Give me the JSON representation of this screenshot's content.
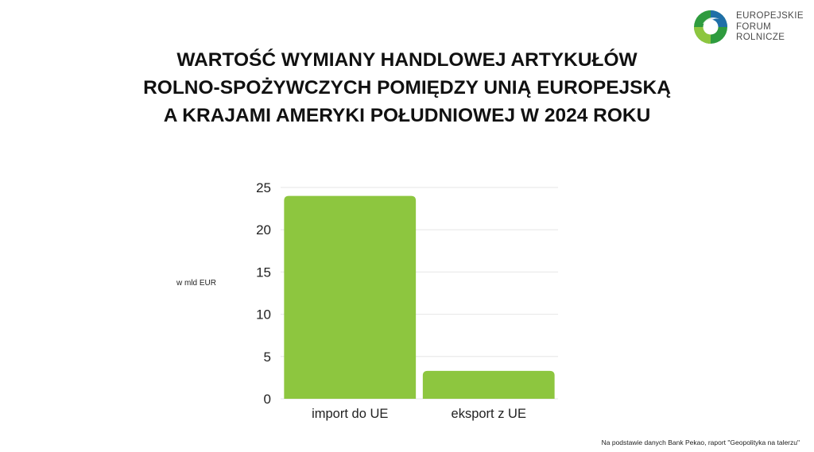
{
  "logo": {
    "icon": "efr-circle-logo-icon",
    "lines": [
      "EUROPEJSKIE",
      "FORUM",
      "ROLNICZE"
    ],
    "colors": {
      "green_dark": "#2e9b3e",
      "green_light": "#8dc63f",
      "blue": "#1f6fa8"
    }
  },
  "title": {
    "lines": [
      "WARTOŚĆ WYMIANY HANDLOWEJ ARTYKUŁÓW",
      "ROLNO-SPOŻYWCZYCH POMIĘDZY UNIĄ EUROPEJSKĄ",
      "A KRAJAMI AMERYKI POŁUDNIOWEJ W 2024 ROKU"
    ]
  },
  "chart_data": {
    "type": "bar",
    "categories": [
      "import do UE",
      "eksport z UE"
    ],
    "values": [
      24,
      3.3
    ],
    "ylabel": "w mld EUR",
    "xlabel": "",
    "ylim": [
      0,
      25
    ],
    "yticks": [
      0,
      5,
      10,
      15,
      20,
      25
    ],
    "grid": true,
    "bar_color": "#8dc63f",
    "grid_color": "#e6e6e6"
  },
  "source": "Na podstawie danych Bank Pekao, raport \"Geopolityka na talerzu\""
}
